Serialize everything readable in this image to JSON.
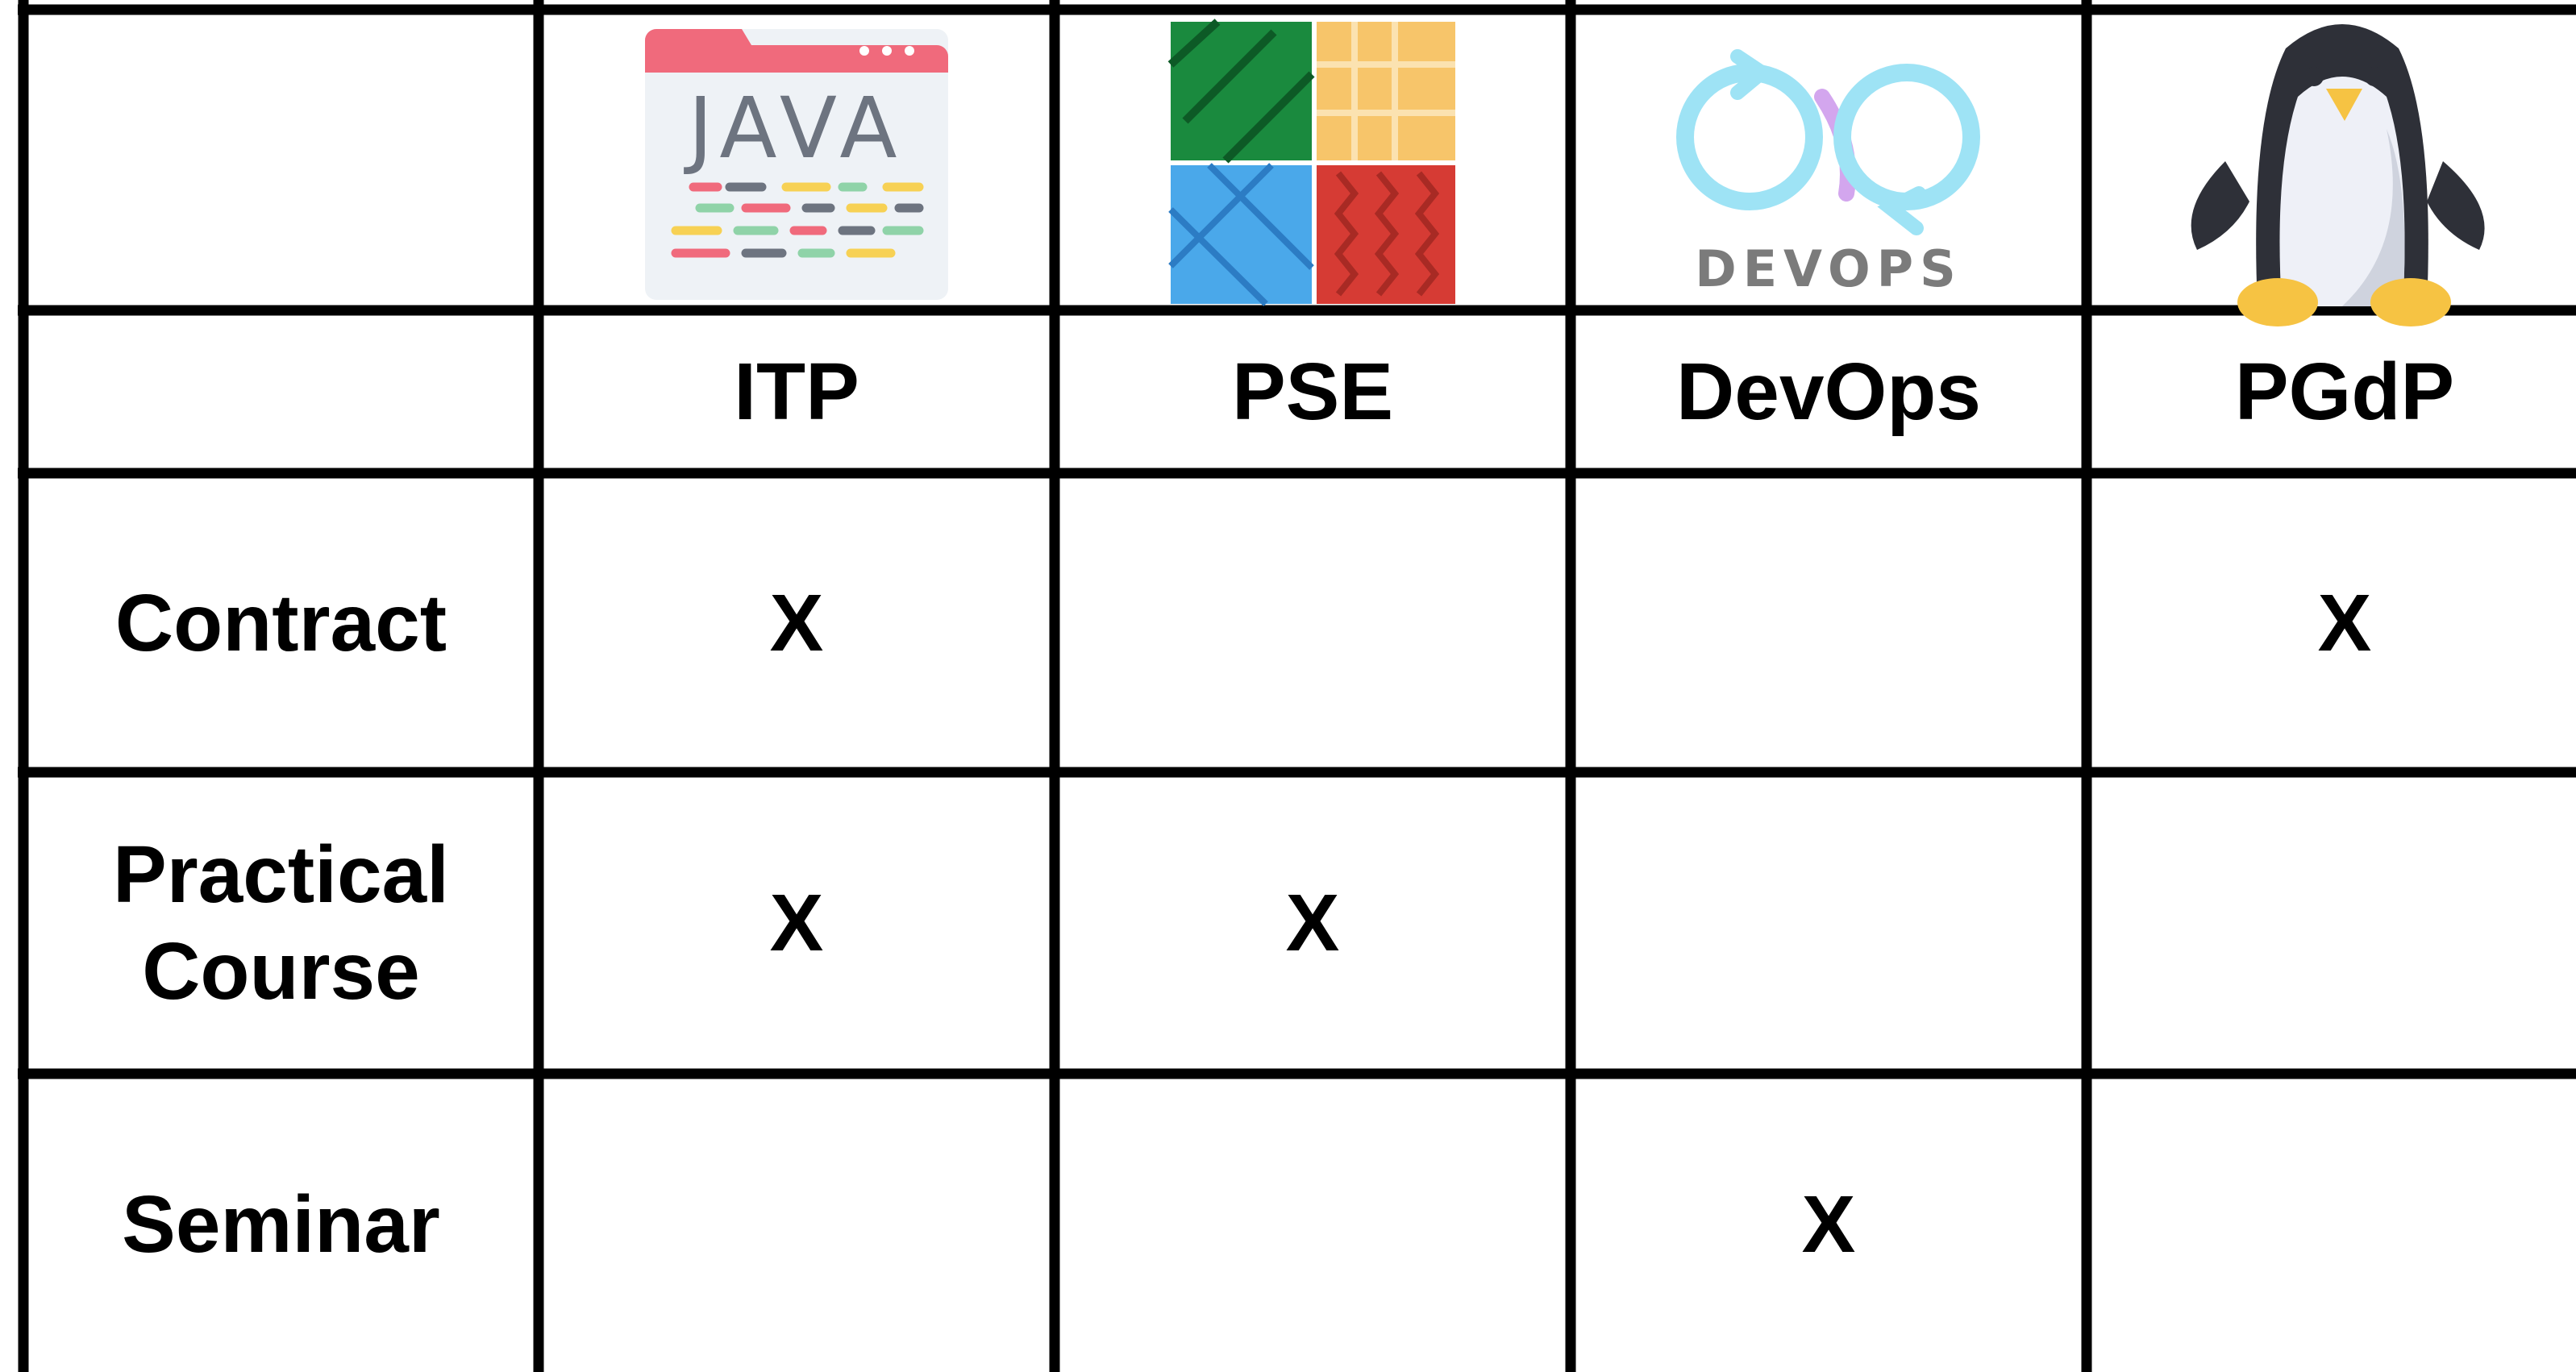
{
  "header": {
    "columns": [
      "ITP",
      "PSE",
      "DevOps",
      "PGdP"
    ]
  },
  "table": {
    "rows": [
      {
        "label": "Contract",
        "cells": [
          "X",
          null,
          null,
          "X"
        ]
      },
      {
        "label": "Practical Course",
        "cells": [
          "X",
          "X",
          null,
          null
        ]
      },
      {
        "label": "Seminar",
        "cells": [
          null,
          null,
          "X",
          null
        ]
      }
    ]
  }
}
